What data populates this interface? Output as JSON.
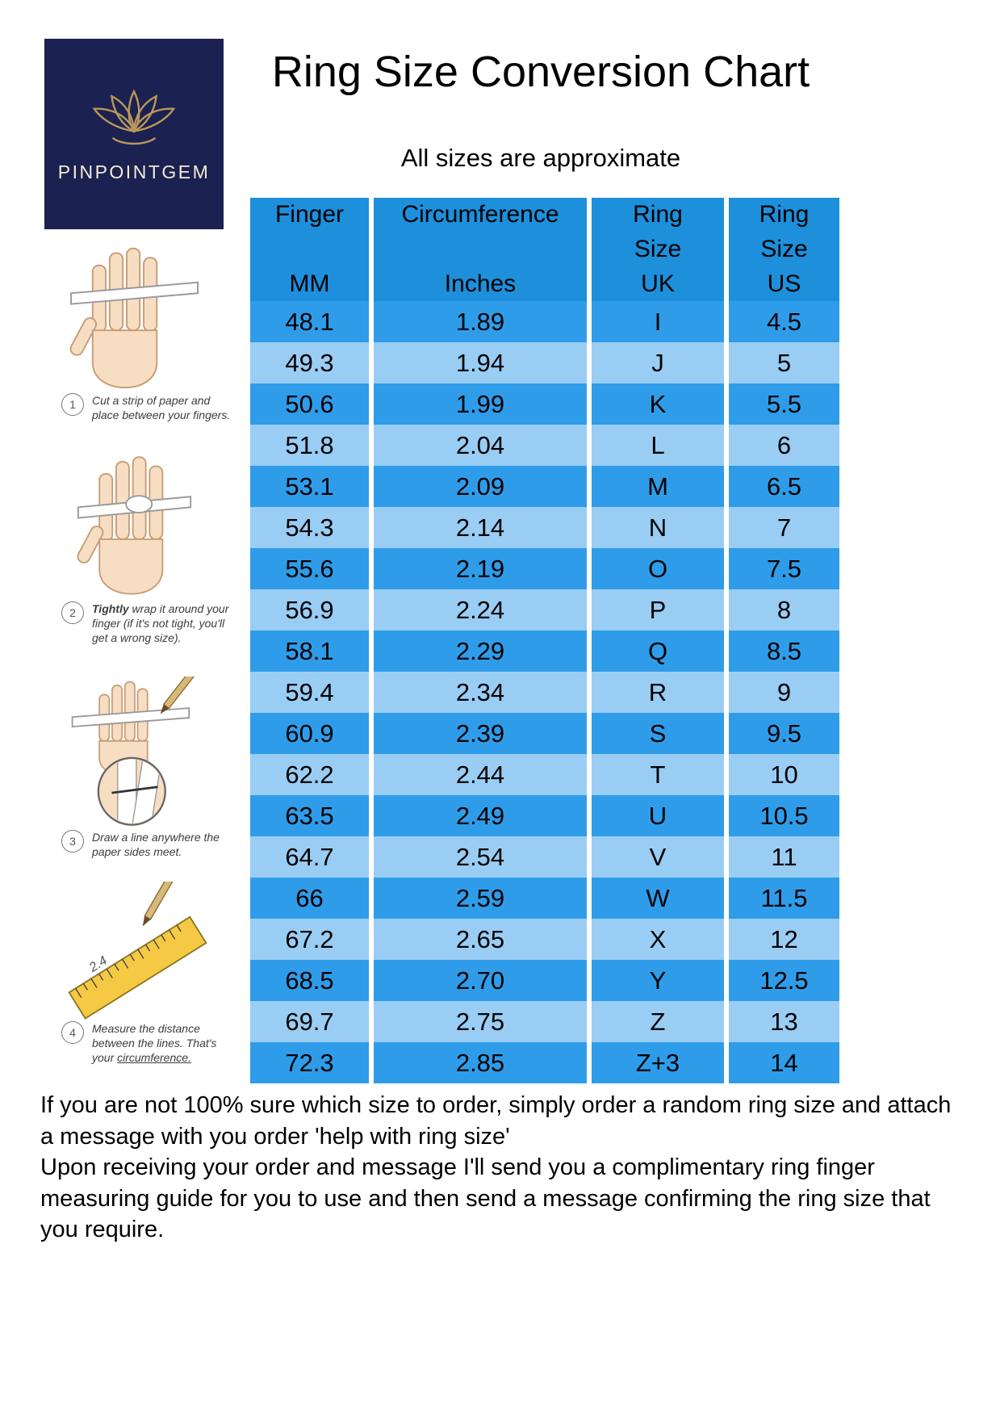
{
  "logo": {
    "brand": "PINPOINTGEM"
  },
  "header": {
    "title": "Ring Size Conversion Chart",
    "subtitle": "All sizes are approximate"
  },
  "table": {
    "columns": [
      {
        "lines": [
          "Finger",
          "MM"
        ]
      },
      {
        "lines": [
          "Circumference",
          "Inches"
        ]
      },
      {
        "lines": [
          "Ring",
          "Size",
          "UK"
        ]
      },
      {
        "lines": [
          "Ring",
          "Size",
          "US"
        ]
      }
    ],
    "rows": [
      [
        "48.1",
        "1.89",
        "I",
        "4.5"
      ],
      [
        "49.3",
        "1.94",
        "J",
        "5"
      ],
      [
        "50.6",
        "1.99",
        "K",
        "5.5"
      ],
      [
        "51.8",
        "2.04",
        "L",
        "6"
      ],
      [
        "53.1",
        "2.09",
        "M",
        "6.5"
      ],
      [
        "54.3",
        "2.14",
        "N",
        "7"
      ],
      [
        "55.6",
        "2.19",
        "O",
        "7.5"
      ],
      [
        "56.9",
        "2.24",
        "P",
        "8"
      ],
      [
        "58.1",
        "2.29",
        "Q",
        "8.5"
      ],
      [
        "59.4",
        "2.34",
        "R",
        "9"
      ],
      [
        "60.9",
        "2.39",
        "S",
        "9.5"
      ],
      [
        "62.2",
        "2.44",
        "T",
        "10"
      ],
      [
        "63.5",
        "2.49",
        "U",
        "10.5"
      ],
      [
        "64.7",
        "2.54",
        "V",
        "11"
      ],
      [
        "66",
        "2.59",
        "W",
        "11.5"
      ],
      [
        "67.2",
        "2.65",
        "X",
        "12"
      ],
      [
        "68.5",
        "2.70",
        "Y",
        "12.5"
      ],
      [
        "69.7",
        "2.75",
        "Z",
        "13"
      ],
      [
        "72.3",
        "2.85",
        "Z+3",
        "14"
      ]
    ]
  },
  "steps": [
    {
      "num": "1",
      "bold": "",
      "text": "Cut a strip of paper and place between your fingers.",
      "underline": ""
    },
    {
      "num": "2",
      "bold": "Tightly",
      "text": " wrap it around your finger (if it's not tight, you'll get a wrong size).",
      "underline": ""
    },
    {
      "num": "3",
      "bold": "",
      "text": "Draw a line anywhere the paper sides meet.",
      "underline": ""
    },
    {
      "num": "4",
      "bold": "",
      "text": "Measure the distance between the lines. That's your ",
      "underline": "circumference."
    }
  ],
  "illustrations": {
    "ruler_annotation": "2.4"
  },
  "footer": {
    "paragraphs": [
      "If you are not 100% sure which size to order, simply order a random ring size and attach a message with you order 'help with ring size'",
      "Upon receiving your order and message I'll send you a complimentary ring finger measuring guide for you to use and then send a message confirming the ring size that you require."
    ]
  },
  "colors": {
    "logo_navy": "#1b2150",
    "logo_gold": "#b9975b",
    "header_blue": "#1d8fdb",
    "row_blue_dark": "#2f9ce9",
    "row_blue_light": "#9acdf4"
  }
}
